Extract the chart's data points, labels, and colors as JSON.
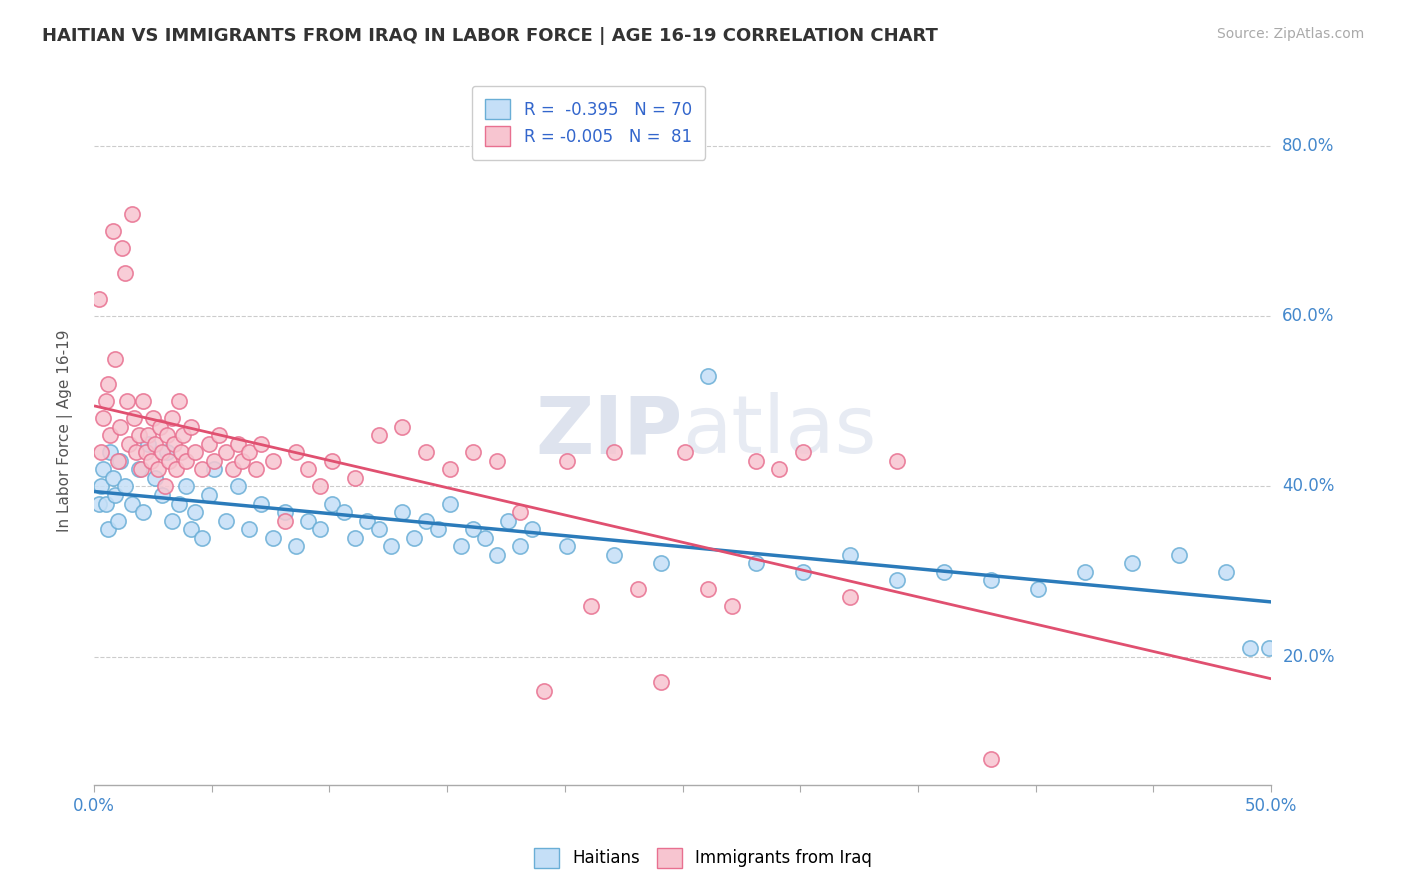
{
  "title": "HAITIAN VS IMMIGRANTS FROM IRAQ IN LABOR FORCE | AGE 16-19 CORRELATION CHART",
  "source": "Source: ZipAtlas.com",
  "ylabel": "In Labor Force | Age 16-19",
  "xlim": [
    0.0,
    0.5
  ],
  "ylim": [
    0.05,
    0.88
  ],
  "ytick_values": [
    0.2,
    0.4,
    0.6,
    0.8
  ],
  "blue_face": "#c5dff7",
  "blue_edge": "#6aaed6",
  "blue_line": "#2b7bba",
  "pink_face": "#f7c5d0",
  "pink_edge": "#e87090",
  "pink_line": "#e05070",
  "watermark_color": "#d0d8e8",
  "haitian_points": [
    [
      0.002,
      0.38
    ],
    [
      0.003,
      0.4
    ],
    [
      0.004,
      0.42
    ],
    [
      0.005,
      0.38
    ],
    [
      0.006,
      0.35
    ],
    [
      0.007,
      0.44
    ],
    [
      0.008,
      0.41
    ],
    [
      0.009,
      0.39
    ],
    [
      0.01,
      0.36
    ],
    [
      0.011,
      0.43
    ],
    [
      0.013,
      0.4
    ],
    [
      0.016,
      0.38
    ],
    [
      0.019,
      0.42
    ],
    [
      0.021,
      0.37
    ],
    [
      0.023,
      0.45
    ],
    [
      0.026,
      0.41
    ],
    [
      0.029,
      0.39
    ],
    [
      0.031,
      0.44
    ],
    [
      0.033,
      0.36
    ],
    [
      0.036,
      0.38
    ],
    [
      0.039,
      0.4
    ],
    [
      0.041,
      0.35
    ],
    [
      0.043,
      0.37
    ],
    [
      0.046,
      0.34
    ],
    [
      0.049,
      0.39
    ],
    [
      0.051,
      0.42
    ],
    [
      0.056,
      0.36
    ],
    [
      0.061,
      0.4
    ],
    [
      0.066,
      0.35
    ],
    [
      0.071,
      0.38
    ],
    [
      0.076,
      0.34
    ],
    [
      0.081,
      0.37
    ],
    [
      0.086,
      0.33
    ],
    [
      0.091,
      0.36
    ],
    [
      0.096,
      0.35
    ],
    [
      0.101,
      0.38
    ],
    [
      0.106,
      0.37
    ],
    [
      0.111,
      0.34
    ],
    [
      0.116,
      0.36
    ],
    [
      0.121,
      0.35
    ],
    [
      0.126,
      0.33
    ],
    [
      0.131,
      0.37
    ],
    [
      0.136,
      0.34
    ],
    [
      0.141,
      0.36
    ],
    [
      0.146,
      0.35
    ],
    [
      0.151,
      0.38
    ],
    [
      0.156,
      0.33
    ],
    [
      0.161,
      0.35
    ],
    [
      0.166,
      0.34
    ],
    [
      0.171,
      0.32
    ],
    [
      0.176,
      0.36
    ],
    [
      0.181,
      0.33
    ],
    [
      0.186,
      0.35
    ],
    [
      0.201,
      0.33
    ],
    [
      0.221,
      0.32
    ],
    [
      0.241,
      0.31
    ],
    [
      0.261,
      0.53
    ],
    [
      0.281,
      0.31
    ],
    [
      0.301,
      0.3
    ],
    [
      0.321,
      0.32
    ],
    [
      0.341,
      0.29
    ],
    [
      0.361,
      0.3
    ],
    [
      0.381,
      0.29
    ],
    [
      0.401,
      0.28
    ],
    [
      0.421,
      0.3
    ],
    [
      0.441,
      0.31
    ],
    [
      0.461,
      0.32
    ],
    [
      0.481,
      0.3
    ],
    [
      0.491,
      0.21
    ],
    [
      0.499,
      0.21
    ]
  ],
  "iraq_points": [
    [
      0.002,
      0.62
    ],
    [
      0.003,
      0.44
    ],
    [
      0.004,
      0.48
    ],
    [
      0.005,
      0.5
    ],
    [
      0.006,
      0.52
    ],
    [
      0.007,
      0.46
    ],
    [
      0.008,
      0.7
    ],
    [
      0.009,
      0.55
    ],
    [
      0.01,
      0.43
    ],
    [
      0.011,
      0.47
    ],
    [
      0.012,
      0.68
    ],
    [
      0.013,
      0.65
    ],
    [
      0.014,
      0.5
    ],
    [
      0.015,
      0.45
    ],
    [
      0.016,
      0.72
    ],
    [
      0.017,
      0.48
    ],
    [
      0.018,
      0.44
    ],
    [
      0.019,
      0.46
    ],
    [
      0.02,
      0.42
    ],
    [
      0.021,
      0.5
    ],
    [
      0.022,
      0.44
    ],
    [
      0.023,
      0.46
    ],
    [
      0.024,
      0.43
    ],
    [
      0.025,
      0.48
    ],
    [
      0.026,
      0.45
    ],
    [
      0.027,
      0.42
    ],
    [
      0.028,
      0.47
    ],
    [
      0.029,
      0.44
    ],
    [
      0.03,
      0.4
    ],
    [
      0.031,
      0.46
    ],
    [
      0.032,
      0.43
    ],
    [
      0.033,
      0.48
    ],
    [
      0.034,
      0.45
    ],
    [
      0.035,
      0.42
    ],
    [
      0.036,
      0.5
    ],
    [
      0.037,
      0.44
    ],
    [
      0.038,
      0.46
    ],
    [
      0.039,
      0.43
    ],
    [
      0.041,
      0.47
    ],
    [
      0.043,
      0.44
    ],
    [
      0.046,
      0.42
    ],
    [
      0.049,
      0.45
    ],
    [
      0.051,
      0.43
    ],
    [
      0.053,
      0.46
    ],
    [
      0.056,
      0.44
    ],
    [
      0.059,
      0.42
    ],
    [
      0.061,
      0.45
    ],
    [
      0.063,
      0.43
    ],
    [
      0.066,
      0.44
    ],
    [
      0.069,
      0.42
    ],
    [
      0.071,
      0.45
    ],
    [
      0.076,
      0.43
    ],
    [
      0.081,
      0.36
    ],
    [
      0.086,
      0.44
    ],
    [
      0.091,
      0.42
    ],
    [
      0.096,
      0.4
    ],
    [
      0.101,
      0.43
    ],
    [
      0.111,
      0.41
    ],
    [
      0.121,
      0.46
    ],
    [
      0.131,
      0.47
    ],
    [
      0.141,
      0.44
    ],
    [
      0.151,
      0.42
    ],
    [
      0.161,
      0.44
    ],
    [
      0.171,
      0.43
    ],
    [
      0.181,
      0.37
    ],
    [
      0.191,
      0.16
    ],
    [
      0.201,
      0.43
    ],
    [
      0.211,
      0.26
    ],
    [
      0.221,
      0.44
    ],
    [
      0.231,
      0.28
    ],
    [
      0.241,
      0.17
    ],
    [
      0.251,
      0.44
    ],
    [
      0.261,
      0.28
    ],
    [
      0.271,
      0.26
    ],
    [
      0.281,
      0.43
    ],
    [
      0.291,
      0.42
    ],
    [
      0.301,
      0.44
    ],
    [
      0.321,
      0.27
    ],
    [
      0.341,
      0.43
    ],
    [
      0.381,
      0.08
    ]
  ]
}
